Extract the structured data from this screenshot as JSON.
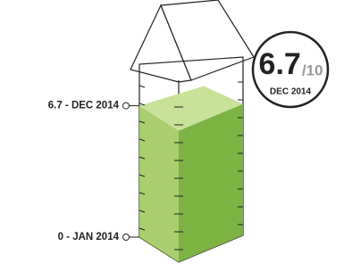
{
  "chart_data": {
    "type": "gauge",
    "value": 6.7,
    "max": {
      "value": 10,
      "label": "/10"
    },
    "ylim": [
      0,
      10
    ],
    "date_label": "DEC 2014",
    "annotations": [
      {
        "value": 6.7,
        "label": "6.7 - DEC 2014"
      },
      {
        "value": 0,
        "label": "0 - JAN 2014"
      }
    ],
    "colors": {
      "front": "#a9cf6f",
      "side": "#7cb342",
      "top": "#c8e29a"
    }
  }
}
